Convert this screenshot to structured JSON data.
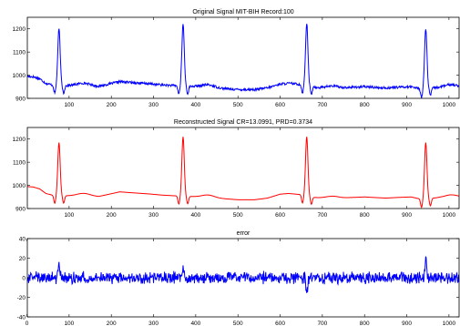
{
  "chart_data": [
    {
      "type": "line",
      "title": "Original Signal MIT-BIH Record:100",
      "xlim": [
        1,
        1024
      ],
      "ylim": [
        900,
        1250
      ],
      "x_ticks": [
        100,
        200,
        300,
        400,
        500,
        600,
        700,
        800,
        900,
        1000
      ],
      "y_ticks": [
        900,
        1000,
        1100,
        1200
      ],
      "grid": false,
      "baseline": [
        [
          0,
          995
        ],
        [
          15,
          993
        ],
        [
          30,
          985
        ],
        [
          45,
          965
        ],
        [
          60,
          958
        ],
        [
          90,
          955
        ],
        [
          120,
          957
        ],
        [
          170,
          952
        ],
        [
          190,
          960
        ],
        [
          220,
          972
        ],
        [
          250,
          968
        ],
        [
          290,
          963
        ],
        [
          320,
          958
        ],
        [
          350,
          955
        ],
        [
          390,
          952
        ],
        [
          420,
          950
        ],
        [
          470,
          942
        ],
        [
          500,
          938
        ],
        [
          540,
          938
        ],
        [
          570,
          945
        ],
        [
          600,
          962
        ],
        [
          620,
          965
        ],
        [
          650,
          960
        ],
        [
          680,
          948
        ],
        [
          720,
          943
        ],
        [
          760,
          947
        ],
        [
          800,
          950
        ],
        [
          850,
          945
        ],
        [
          880,
          948
        ],
        [
          910,
          950
        ],
        [
          935,
          940
        ],
        [
          980,
          948
        ],
        [
          1024,
          950
        ]
      ],
      "r_peaks": [
        76,
        370,
        663,
        945
      ],
      "peak_values": [
        1200,
        1220,
        1225,
        1200
      ],
      "noise_amplitude": 5,
      "series": [
        {
          "color": "#0000ff"
        }
      ]
    },
    {
      "type": "line",
      "title": "Reconstructed Signal CR=13.0991, PRD=0.3734",
      "xlim": [
        1,
        1024
      ],
      "ylim": [
        900,
        1250
      ],
      "x_ticks": [
        100,
        200,
        300,
        400,
        500,
        600,
        700,
        800,
        900,
        1000
      ],
      "y_ticks": [
        900,
        1000,
        1100,
        1200
      ],
      "grid": false,
      "baseline": [
        [
          0,
          995
        ],
        [
          15,
          993
        ],
        [
          30,
          985
        ],
        [
          45,
          965
        ],
        [
          60,
          958
        ],
        [
          90,
          955
        ],
        [
          120,
          957
        ],
        [
          170,
          952
        ],
        [
          190,
          960
        ],
        [
          220,
          972
        ],
        [
          250,
          968
        ],
        [
          290,
          963
        ],
        [
          320,
          958
        ],
        [
          350,
          955
        ],
        [
          390,
          952
        ],
        [
          420,
          950
        ],
        [
          470,
          942
        ],
        [
          500,
          938
        ],
        [
          540,
          938
        ],
        [
          570,
          945
        ],
        [
          600,
          962
        ],
        [
          620,
          965
        ],
        [
          650,
          960
        ],
        [
          680,
          948
        ],
        [
          720,
          943
        ],
        [
          760,
          947
        ],
        [
          800,
          950
        ],
        [
          850,
          945
        ],
        [
          880,
          948
        ],
        [
          910,
          950
        ],
        [
          935,
          940
        ],
        [
          980,
          948
        ],
        [
          1024,
          950
        ]
      ],
      "r_peaks": [
        76,
        370,
        663,
        945
      ],
      "peak_values": [
        1185,
        1210,
        1210,
        1185
      ],
      "noise_amplitude": 0,
      "series": [
        {
          "color": "#ff0000"
        }
      ]
    },
    {
      "type": "line",
      "title": "error",
      "xlim": [
        1,
        1024
      ],
      "ylim": [
        -40,
        40
      ],
      "x_ticks": [
        0,
        100,
        200,
        300,
        400,
        500,
        600,
        700,
        800,
        900,
        1000
      ],
      "y_ticks": [
        -40,
        -20,
        0,
        20,
        40
      ],
      "grid": false,
      "noise_amplitude": 5,
      "spikes": [
        [
          76,
          15
        ],
        [
          370,
          10
        ],
        [
          663,
          -15
        ],
        [
          945,
          18
        ]
      ],
      "series": [
        {
          "color": "#0000ff"
        }
      ]
    }
  ]
}
